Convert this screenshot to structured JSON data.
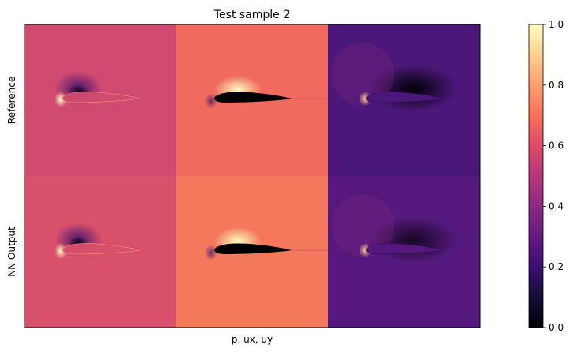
{
  "chart_data": {
    "type": "heatmap",
    "title": "Test sample 2",
    "xlabel": "p, ux, uy",
    "rows": [
      "Reference",
      "NN Output"
    ],
    "columns": [
      "p",
      "ux",
      "uy"
    ],
    "colormap": "magma",
    "colorbar": {
      "range": [
        0.0,
        1.0
      ],
      "ticks": [
        "0.0",
        "0.2",
        "0.4",
        "0.6",
        "0.8",
        "1.0"
      ]
    },
    "panel_background_values": [
      [
        0.55,
        0.68,
        0.22
      ],
      [
        0.58,
        0.7,
        0.25
      ]
    ],
    "panel_colors": [
      [
        "#d14a70",
        "#f06b5e",
        "#4b1779"
      ],
      [
        "#d9506b",
        "#f3785c",
        "#55197d"
      ]
    ]
  }
}
